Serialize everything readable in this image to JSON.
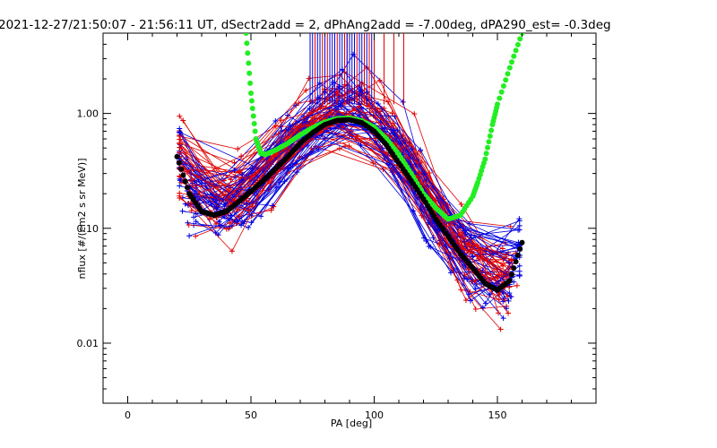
{
  "chart_data": {
    "type": "scatter",
    "title": "2021-12-27/21:50:07 - 21:56:11 UT, dSectr2add = 2, dPhAng2add = -7.00deg, dPA290_est=  -0.3deg",
    "xlabel": "PA [deg]",
    "ylabel": "nflux [#/(cm2 s sr MeV)]",
    "xlim": [
      -10,
      190
    ],
    "ylim": [
      0.003,
      5.0
    ],
    "yscale": "log",
    "x_ticks": [
      0,
      50,
      100,
      150
    ],
    "x_tick_labels": [
      "0",
      "50",
      "100",
      "150"
    ],
    "y_ticks": [
      0.01,
      0.1,
      1.0
    ],
    "y_tick_labels": [
      "0.01",
      "0.10",
      "1.00"
    ],
    "colors": {
      "red_series": "#e00000",
      "blue_series": "#0000e0",
      "fit_black": "#000000",
      "fit_green": "#22ee22"
    },
    "series": [
      {
        "color": "black",
        "style": "dots",
        "x": [
          20,
          25,
          30,
          35,
          40,
          45,
          50,
          55,
          60,
          65,
          70,
          75,
          80,
          85,
          90,
          95,
          100,
          105,
          110,
          115,
          120,
          125,
          130,
          135,
          140,
          145,
          150,
          155,
          160
        ],
        "y": [
          0.42,
          0.2,
          0.14,
          0.13,
          0.14,
          0.17,
          0.21,
          0.26,
          0.33,
          0.42,
          0.55,
          0.68,
          0.8,
          0.87,
          0.88,
          0.83,
          0.7,
          0.53,
          0.37,
          0.26,
          0.18,
          0.12,
          0.085,
          0.06,
          0.045,
          0.033,
          0.029,
          0.035,
          0.075
        ]
      },
      {
        "color": "green",
        "style": "dots",
        "x": [
          48,
          50,
          52,
          54,
          56,
          60,
          65,
          70,
          75,
          80,
          85,
          90,
          95,
          100,
          105,
          110,
          115,
          120,
          125,
          130,
          135,
          140,
          142,
          145,
          148,
          150,
          155,
          160
        ],
        "y": [
          5.0,
          1.5,
          0.6,
          0.45,
          0.44,
          0.48,
          0.55,
          0.65,
          0.75,
          0.84,
          0.9,
          0.91,
          0.86,
          0.76,
          0.6,
          0.44,
          0.3,
          0.2,
          0.15,
          0.12,
          0.13,
          0.19,
          0.25,
          0.4,
          0.8,
          1.2,
          2.5,
          5.0
        ]
      }
    ],
    "histogram": {
      "description_free": true,
      "red_x": [
        76,
        78,
        79,
        80,
        81,
        82,
        84,
        85,
        86,
        88,
        89,
        90,
        92,
        93,
        94,
        96,
        98,
        100,
        104,
        108,
        112
      ],
      "blue_x": [
        74,
        75,
        77,
        78,
        80,
        82,
        83,
        84,
        86,
        87,
        89,
        90,
        91,
        92,
        94,
        95,
        97,
        99
      ]
    }
  }
}
